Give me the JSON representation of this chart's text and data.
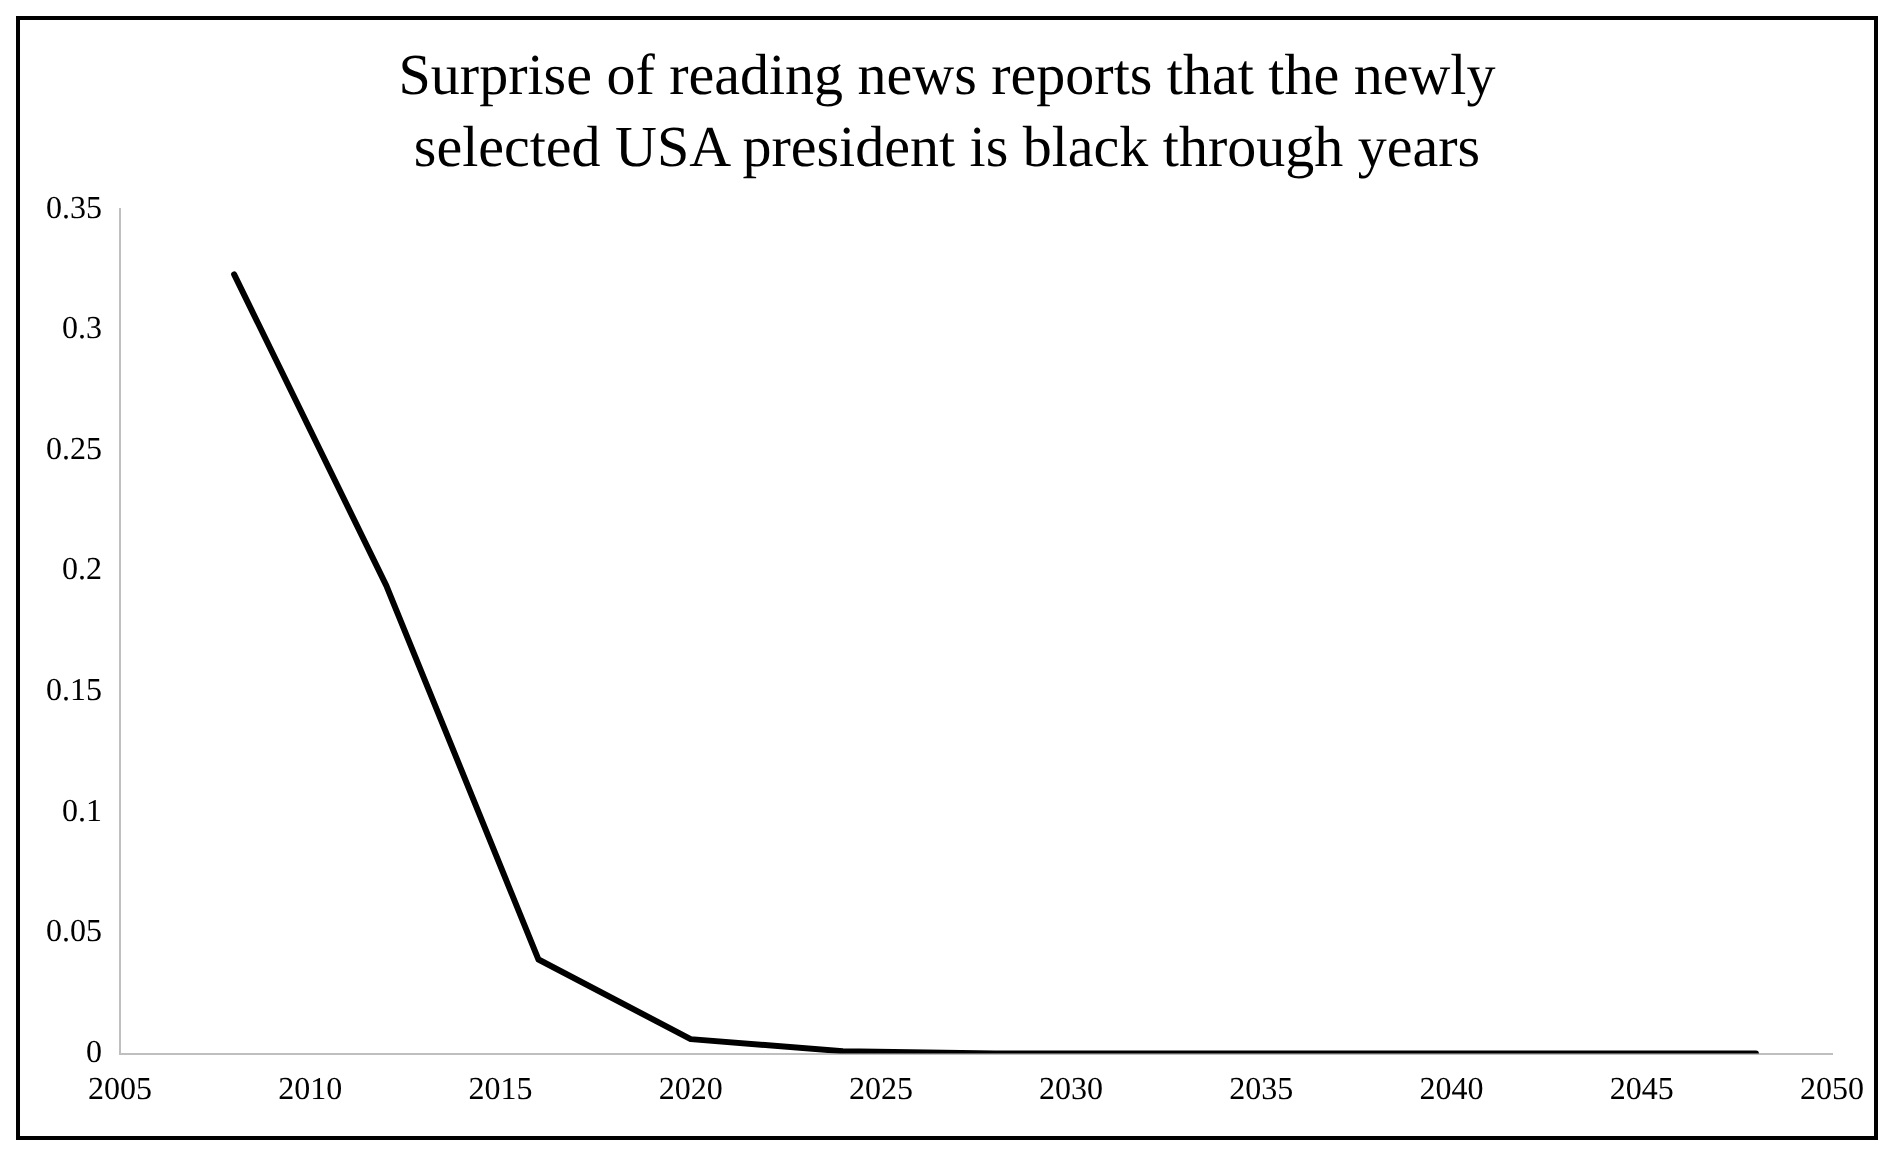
{
  "chart_data": {
    "type": "line",
    "title": "Surprise of reading news reports that the newly selected USA president is black through years",
    "x": [
      2008,
      2012,
      2016,
      2020,
      2024,
      2028,
      2032,
      2036,
      2040,
      2044,
      2048
    ],
    "series": [
      {
        "color": "#000000",
        "values": [
          0.323,
          0.194,
          0.039,
          0.006,
          0.001,
          0,
          0,
          0,
          0,
          0,
          0
        ]
      }
    ],
    "xlim": [
      2005,
      2050
    ],
    "xticks": [
      2005,
      2010,
      2015,
      2020,
      2025,
      2030,
      2035,
      2040,
      2045,
      2050
    ],
    "ylim": [
      0,
      0.35
    ],
    "yticks": [
      0,
      0.05,
      0.1,
      0.15,
      0.2,
      0.25,
      0.3,
      0.35
    ],
    "grid": false,
    "legend": false,
    "marker": "none",
    "line_style": "solid"
  }
}
